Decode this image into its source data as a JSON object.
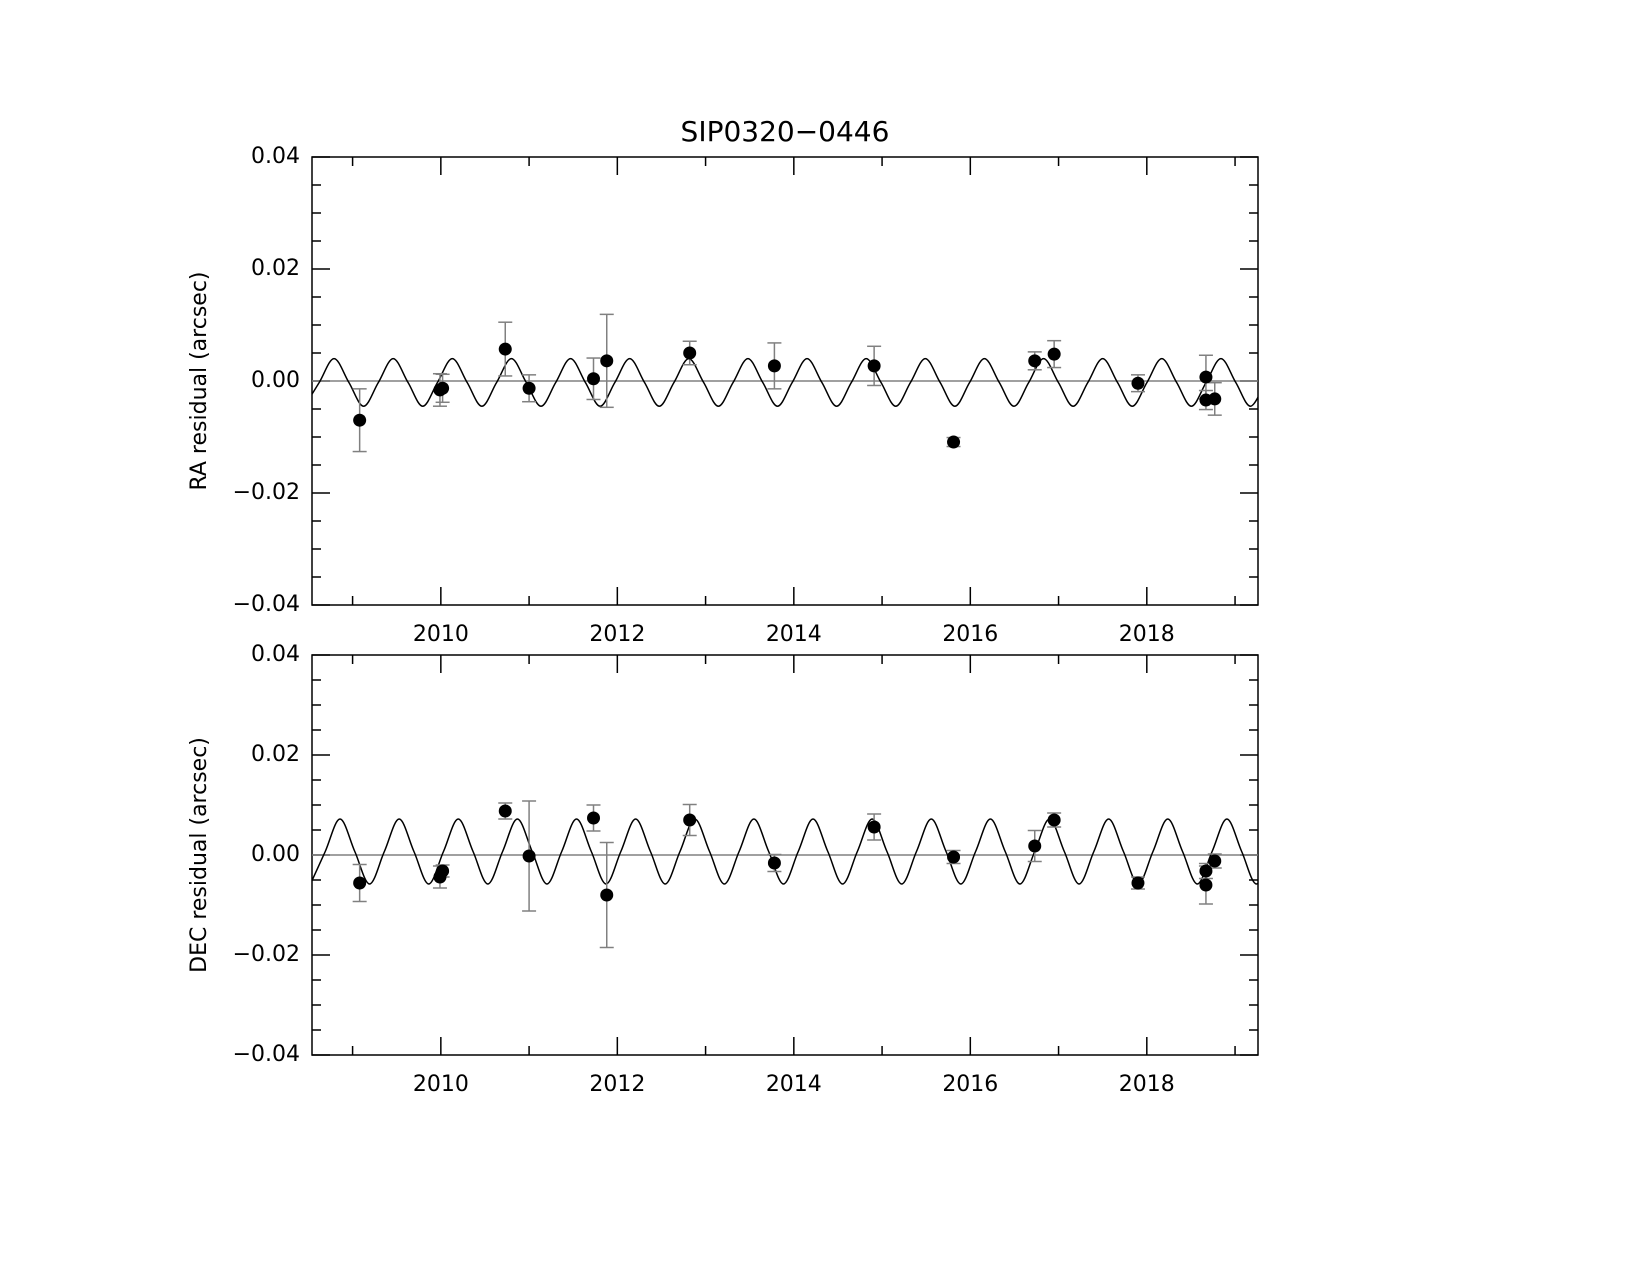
{
  "chart_data": [
    {
      "type": "scatter",
      "title": "SIP0320−0446",
      "ylabel": "RA residual (arcsec)",
      "xlim": [
        2008.54,
        2019.26
      ],
      "ylim": [
        -0.04,
        0.04
      ],
      "xticks": [
        2010,
        2012,
        2014,
        2016,
        2018
      ],
      "xminorticks": [
        2009,
        2011,
        2013,
        2015,
        2017,
        2019
      ],
      "yticks": [
        {
          "value": -0.04,
          "label": "−0.04"
        },
        {
          "value": -0.02,
          "label": "−0.02"
        },
        {
          "value": 0,
          "label": "0.00"
        },
        {
          "value": 0.02,
          "label": "0.02"
        },
        {
          "value": 0.04,
          "label": "0.04"
        }
      ],
      "yminorticks": [
        -0.035,
        -0.03,
        -0.025,
        -0.015,
        -0.01,
        -0.005,
        0.005,
        0.01,
        0.015,
        0.025,
        0.03,
        0.035
      ],
      "reference_line": 0,
      "reference_color": "#808080",
      "series": [
        {
          "type": "errorbar",
          "color": "#000000",
          "error_color": "#808080",
          "x": [
            2009.08,
            2009.99,
            2010.02,
            2010.73,
            2011.0,
            2011.73,
            2011.88,
            2012.82,
            2013.78,
            2014.91,
            2015.81,
            2016.73,
            2016.95,
            2017.9,
            2018.67,
            2018.67,
            2018.77
          ],
          "values": [
            -0.007,
            -0.0016,
            -0.0013,
            0.0057,
            -0.0013,
            0.0004,
            0.0036,
            0.005,
            0.0027,
            0.0027,
            -0.0109,
            0.0036,
            0.0048,
            -0.0004,
            0.0007,
            -0.0034,
            -0.0032
          ],
          "errors": [
            0.0056,
            0.0029,
            0.0025,
            0.0048,
            0.0024,
            0.0037,
            0.0083,
            0.0021,
            0.0041,
            0.0035,
            0.0008,
            0.0016,
            0.0024,
            0.0015,
            0.0039,
            0.0017,
            0.0029
          ]
        },
        {
          "type": "line",
          "color": "#000000",
          "x": [
            2008.455,
            2008.6225,
            2008.79,
            2008.9575,
            2009.125,
            2009.2925,
            2009.46,
            2009.6275,
            2009.795,
            2009.9625,
            2010.13,
            2010.2975,
            2010.465,
            2010.6325,
            2010.8,
            2010.9675,
            2011.135,
            2011.3025,
            2011.47,
            2011.6375,
            2011.805,
            2011.9725,
            2012.14,
            2012.3075,
            2012.475,
            2012.6425,
            2012.81,
            2012.9775,
            2013.145,
            2013.3125,
            2013.48,
            2013.6475,
            2013.815,
            2013.9825,
            2014.15,
            2014.3175,
            2014.485,
            2014.6525,
            2014.82,
            2014.9875,
            2015.155,
            2015.3225,
            2015.49,
            2015.6575,
            2015.825,
            2015.9925,
            2016.16,
            2016.3275,
            2016.495,
            2016.6625,
            2016.83,
            2016.9975,
            2017.165,
            2017.3325,
            2017.5,
            2017.6675,
            2017.835,
            2018.0025,
            2018.17,
            2018.3375,
            2018.505,
            2018.6725,
            2018.84,
            2019.0075,
            2019.175,
            2019.3425
          ],
          "values": [
            -0.0045,
            -0.00025,
            0.004,
            -0.00025,
            -0.0045,
            -0.00025,
            0.004,
            -0.00025,
            -0.0045,
            -0.00025,
            0.004,
            -0.00025,
            -0.0045,
            -0.00025,
            0.004,
            -0.00025,
            -0.0045,
            -0.00025,
            0.004,
            -0.00025,
            -0.0045,
            -0.00025,
            0.004,
            -0.00025,
            -0.0045,
            -0.00025,
            0.004,
            -0.00025,
            -0.0045,
            -0.00025,
            0.004,
            -0.00025,
            -0.0045,
            -0.00025,
            0.004,
            -0.00025,
            -0.0045,
            -0.00025,
            0.004,
            -0.00025,
            -0.0045,
            -0.00025,
            0.004,
            -0.00025,
            -0.0045,
            -0.00025,
            0.004,
            -0.00025,
            -0.0045,
            -0.00025,
            0.004,
            -0.00025,
            -0.0045,
            -0.00025,
            0.004,
            -0.00025,
            -0.0045,
            -0.00025,
            0.004,
            -0.00025,
            -0.0045,
            -0.00025,
            0.004,
            -0.00025,
            -0.0045,
            -0.00025
          ]
        }
      ]
    },
    {
      "type": "scatter",
      "ylabel": "DEC residual (arcsec)",
      "xlim": [
        2008.54,
        2019.26
      ],
      "ylim": [
        -0.04,
        0.04
      ],
      "xticks": [
        2010,
        2012,
        2014,
        2016,
        2018
      ],
      "xminorticks": [
        2009,
        2011,
        2013,
        2015,
        2017,
        2019
      ],
      "yticks": [
        {
          "value": -0.04,
          "label": "−0.04"
        },
        {
          "value": -0.02,
          "label": "−0.02"
        },
        {
          "value": 0,
          "label": "0.00"
        },
        {
          "value": 0.02,
          "label": "0.02"
        },
        {
          "value": 0.04,
          "label": "0.04"
        }
      ],
      "yminorticks": [
        -0.035,
        -0.03,
        -0.025,
        -0.015,
        -0.01,
        -0.005,
        0.005,
        0.01,
        0.015,
        0.025,
        0.03,
        0.035
      ],
      "reference_line": 0,
      "reference_color": "#808080",
      "series": [
        {
          "type": "errorbar",
          "color": "#000000",
          "error_color": "#808080",
          "x": [
            2009.08,
            2009.99,
            2010.02,
            2010.73,
            2011.0,
            2011.73,
            2011.88,
            2012.82,
            2013.78,
            2014.91,
            2015.81,
            2016.73,
            2016.95,
            2017.9,
            2018.67,
            2018.67,
            2018.77
          ],
          "values": [
            -0.0056,
            -0.0044,
            -0.0032,
            0.0088,
            -0.0002,
            0.0074,
            -0.008,
            0.007,
            -0.0016,
            0.0056,
            -0.0004,
            0.0018,
            0.007,
            -0.0056,
            -0.006,
            -0.0032,
            -0.0012
          ],
          "errors": [
            0.0037,
            0.0022,
            0.0012,
            0.0016,
            0.011,
            0.0026,
            0.0105,
            0.0031,
            0.0017,
            0.0026,
            0.0013,
            0.0031,
            0.0014,
            0.0012,
            0.0038,
            0.0015,
            0.0014
          ]
        },
        {
          "type": "line",
          "color": "#000000",
          "x": [
            2008.5225,
            2008.69,
            2008.8575,
            2009.025,
            2009.1925,
            2009.36,
            2009.5275,
            2009.695,
            2009.8625,
            2010.03,
            2010.1975,
            2010.365,
            2010.5325,
            2010.7,
            2010.8675,
            2011.035,
            2011.2025,
            2011.37,
            2011.5375,
            2011.705,
            2011.8725,
            2012.04,
            2012.2075,
            2012.375,
            2012.5425,
            2012.71,
            2012.8775,
            2013.045,
            2013.2125,
            2013.38,
            2013.5475,
            2013.715,
            2013.8825,
            2014.05,
            2014.2175,
            2014.385,
            2014.5525,
            2014.72,
            2014.8875,
            2015.055,
            2015.2225,
            2015.39,
            2015.5575,
            2015.725,
            2015.8925,
            2016.06,
            2016.2275,
            2016.395,
            2016.5625,
            2016.73,
            2016.8975,
            2017.065,
            2017.2325,
            2017.4,
            2017.5675,
            2017.735,
            2017.9025,
            2018.07,
            2018.2375,
            2018.405,
            2018.5725,
            2018.74,
            2018.9075,
            2019.075,
            2019.2425,
            2019.41
          ],
          "values": [
            -0.0058,
            0.0007,
            0.0072,
            0.0007,
            -0.0058,
            0.0007,
            0.0072,
            0.0007,
            -0.0058,
            0.0007,
            0.0072,
            0.0007,
            -0.0058,
            0.0007,
            0.0072,
            0.0007,
            -0.0058,
            0.0007,
            0.0072,
            0.0007,
            -0.0058,
            0.0007,
            0.0072,
            0.0007,
            -0.0058,
            0.0007,
            0.0072,
            0.0007,
            -0.0058,
            0.0007,
            0.0072,
            0.0007,
            -0.0058,
            0.0007,
            0.0072,
            0.0007,
            -0.0058,
            0.0007,
            0.0072,
            0.0007,
            -0.0058,
            0.0007,
            0.0072,
            0.0007,
            -0.0058,
            0.0007,
            0.0072,
            0.0007,
            -0.0058,
            0.0007,
            0.0072,
            0.0007,
            -0.0058,
            0.0007,
            0.0072,
            0.0007,
            -0.0058,
            0.0007,
            0.0072,
            0.0007,
            -0.0058,
            0.0007,
            0.0072,
            0.0007,
            -0.0058,
            0.0007
          ]
        }
      ]
    }
  ]
}
